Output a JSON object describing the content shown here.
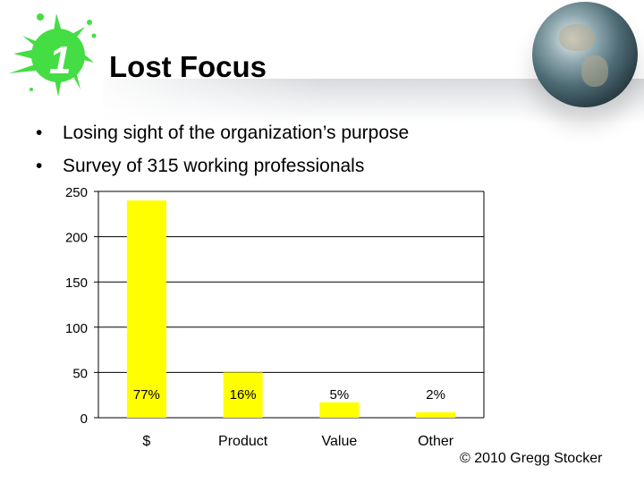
{
  "slide": {
    "title": "Lost Focus",
    "logo_text": "1",
    "bullets": [
      "Losing sight of the organization’s purpose",
      "Survey of 315 working professionals"
    ],
    "copyright": "© 2010 Gregg Stocker"
  },
  "colors": {
    "bar": "#ffff00",
    "logo": "#44dd44"
  },
  "chart_data": {
    "type": "bar",
    "categories": [
      "$",
      "Product",
      "Value",
      "Other"
    ],
    "values": [
      240,
      50,
      17,
      6
    ],
    "data_labels": [
      "77%",
      "16%",
      "5%",
      "2%"
    ],
    "ylim": [
      0,
      250
    ],
    "yticks": [
      "0",
      "50",
      "100",
      "150",
      "200",
      "250"
    ],
    "grid": true,
    "legend": "none"
  }
}
